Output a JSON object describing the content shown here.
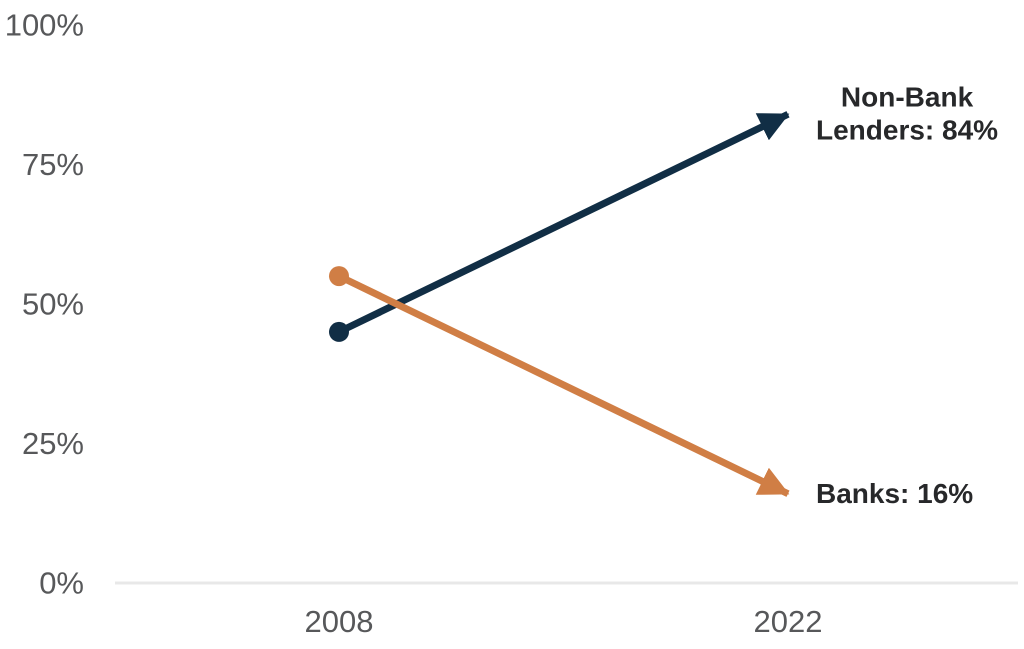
{
  "chart_data": {
    "type": "line",
    "subtype": "slope-arrow-chart",
    "title": "",
    "xlabel": "",
    "ylabel": "",
    "x_categories": [
      "2008",
      "2022"
    ],
    "series": [
      {
        "name": "Non-Bank Lenders",
        "values": [
          45,
          84
        ],
        "color": "#112e45",
        "annotation_lines": [
          "Non-Bank",
          "Lenders: 84%"
        ]
      },
      {
        "name": "Banks",
        "values": [
          55,
          16
        ],
        "color": "#d07e45",
        "annotation_lines": [
          "Banks: 16%"
        ]
      }
    ],
    "ylim": [
      0,
      100
    ],
    "yticks": [
      {
        "value": 0,
        "label": "0%"
      },
      {
        "value": 25,
        "label": "25%"
      },
      {
        "value": 50,
        "label": "50%"
      },
      {
        "value": 75,
        "label": "75%"
      },
      {
        "value": 100,
        "label": "100%"
      }
    ],
    "grid": false,
    "legend_position": "none",
    "axis_line_color": "#e8e8e8",
    "tick_label_color": "#57585a",
    "annotation_color": "#27282a",
    "background_color": "#ffffff"
  }
}
